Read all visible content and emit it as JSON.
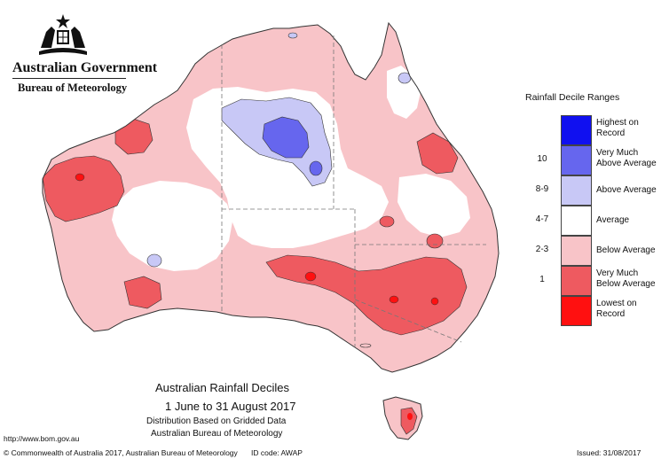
{
  "branding": {
    "government": "Australian Government",
    "bureau": "Bureau of Meteorology"
  },
  "legend": {
    "title": "Rainfall Decile Ranges",
    "items": [
      {
        "range": "",
        "label": "Highest on Record",
        "color": "#1010f0"
      },
      {
        "range": "10",
        "label": "Very Much Above Average",
        "color": "#6666ee"
      },
      {
        "range": "8-9",
        "label": "Above Average",
        "color": "#c8c8f6"
      },
      {
        "range": "4-7",
        "label": "Average",
        "color": "#ffffff"
      },
      {
        "range": "2-3",
        "label": "Below Average",
        "color": "#f8c4c8"
      },
      {
        "range": "1",
        "label": "Very Much Below Average",
        "color": "#ee5a60"
      },
      {
        "range": "",
        "label": "Lowest on Record",
        "color": "#ff1010"
      }
    ]
  },
  "caption": {
    "title": "Australian Rainfall Deciles",
    "dates": "1 June to 31 August 2017",
    "distribution": "Distribution Based on Gridded Data",
    "source": "Australian Bureau of Meteorology"
  },
  "footer": {
    "url": "http://www.bom.gov.au",
    "copyright": "© Commonwealth of Australia 2017, Australian Bureau of Meteorology",
    "id_code": "ID code: AWAP",
    "issued": "Issued: 31/08/2017"
  },
  "colors": {
    "outline": "#333333",
    "border": "#777777"
  }
}
